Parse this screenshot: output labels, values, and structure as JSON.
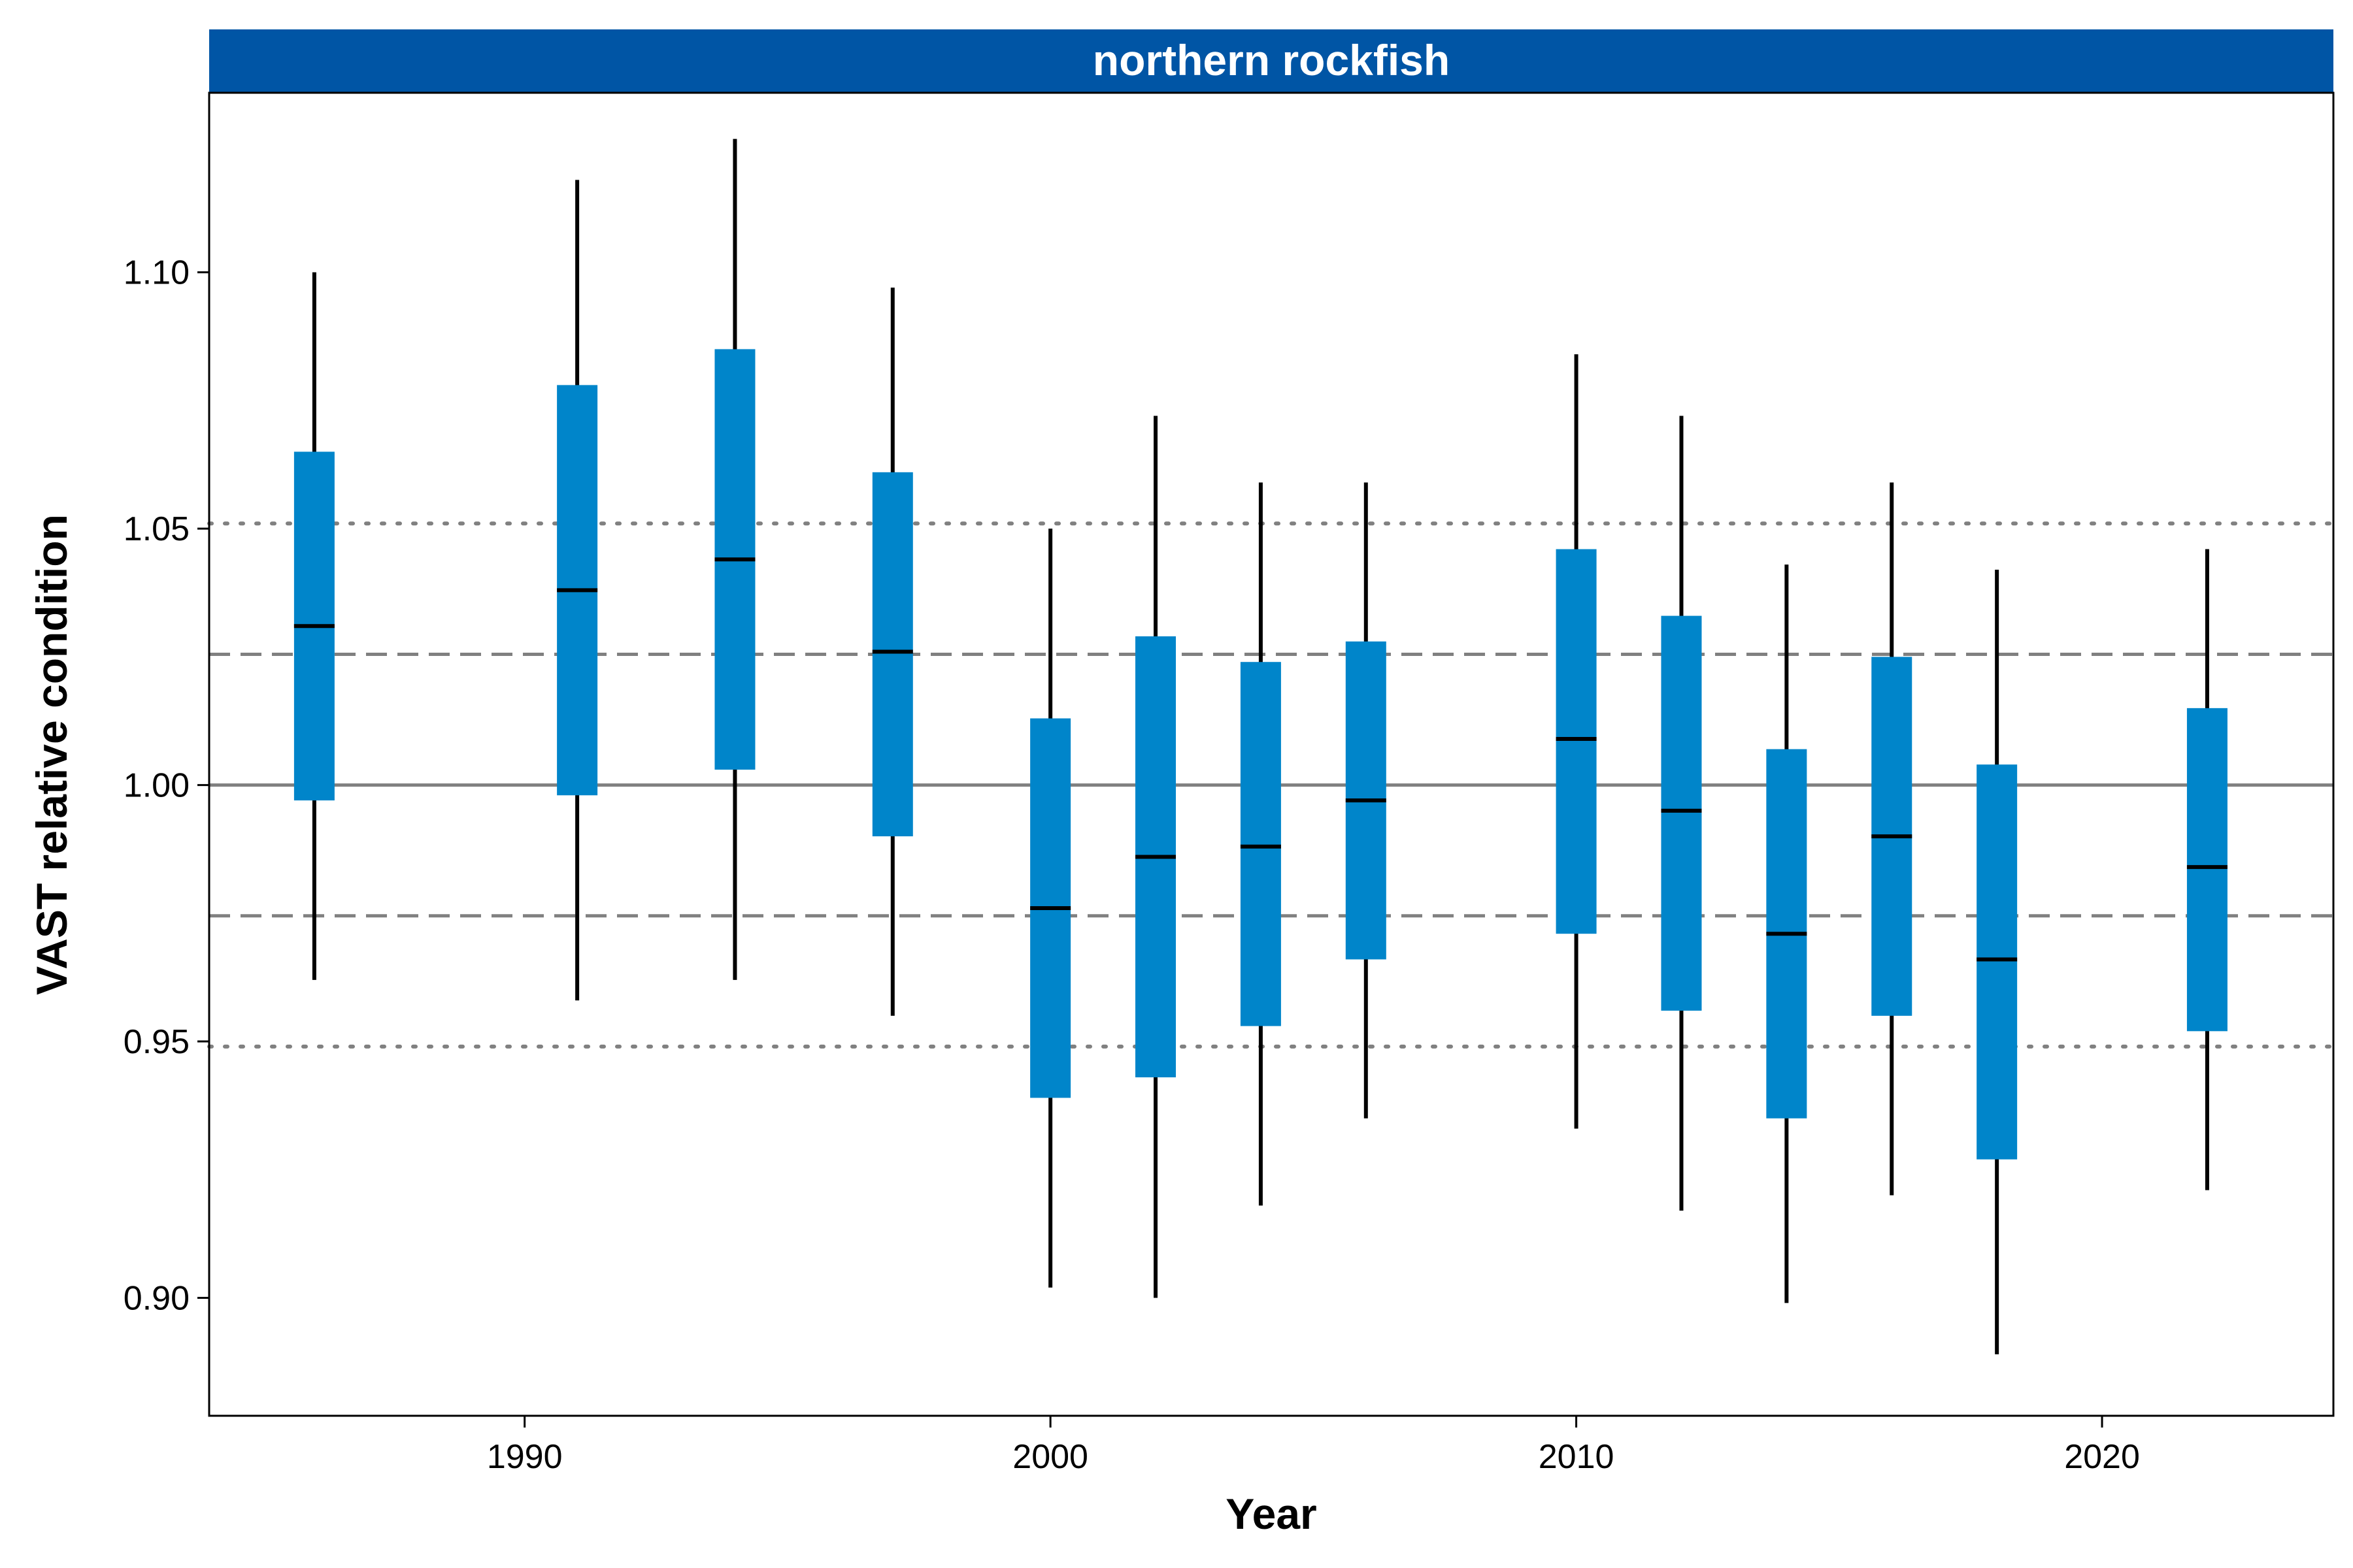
{
  "colors": {
    "strip_fill": "#0055A5",
    "box_fill": "#0085CA",
    "whisker": "#000000",
    "median": "#000000",
    "reference_lines": "#808080",
    "panel_border": "#000000"
  },
  "chart_data": {
    "type": "box",
    "panel_title": "northern rockfish",
    "xlabel": "Year",
    "ylabel": "VAST relative condition",
    "xlim": [
      1984,
      2024.4
    ],
    "ylim": [
      0.877,
      1.135
    ],
    "x_ticks": [
      1990,
      2000,
      2010,
      2020
    ],
    "y_ticks": [
      0.9,
      0.95,
      1.0,
      1.05,
      1.1
    ],
    "y_tick_labels": [
      "0.90",
      "0.95",
      "1.00",
      "1.05",
      "1.10"
    ],
    "grid": false,
    "reference_lines": [
      {
        "y": 1.0,
        "style": "solid"
      },
      {
        "y": 1.0255,
        "style": "dashed"
      },
      {
        "y": 0.9745,
        "style": "dashed"
      },
      {
        "y": 1.051,
        "style": "dotted"
      },
      {
        "y": 0.949,
        "style": "dotted"
      }
    ],
    "boxes": [
      {
        "year": 1986,
        "whisker_low": 0.962,
        "box_low": 0.997,
        "median": 1.031,
        "box_high": 1.065,
        "whisker_high": 1.1
      },
      {
        "year": 1991,
        "whisker_low": 0.958,
        "box_low": 0.998,
        "median": 1.038,
        "box_high": 1.078,
        "whisker_high": 1.118
      },
      {
        "year": 1994,
        "whisker_low": 0.962,
        "box_low": 1.003,
        "median": 1.044,
        "box_high": 1.085,
        "whisker_high": 1.126
      },
      {
        "year": 1997,
        "whisker_low": 0.955,
        "box_low": 0.99,
        "median": 1.026,
        "box_high": 1.061,
        "whisker_high": 1.097
      },
      {
        "year": 2000,
        "whisker_low": 0.902,
        "box_low": 0.939,
        "median": 0.976,
        "box_high": 1.013,
        "whisker_high": 1.05
      },
      {
        "year": 2002,
        "whisker_low": 0.9,
        "box_low": 0.943,
        "median": 0.986,
        "box_high": 1.029,
        "whisker_high": 1.072
      },
      {
        "year": 2004,
        "whisker_low": 0.918,
        "box_low": 0.953,
        "median": 0.988,
        "box_high": 1.024,
        "whisker_high": 1.059
      },
      {
        "year": 2006,
        "whisker_low": 0.935,
        "box_low": 0.966,
        "median": 0.997,
        "box_high": 1.028,
        "whisker_high": 1.059
      },
      {
        "year": 2010,
        "whisker_low": 0.933,
        "box_low": 0.971,
        "median": 1.009,
        "box_high": 1.046,
        "whisker_high": 1.084
      },
      {
        "year": 2012,
        "whisker_low": 0.917,
        "box_low": 0.956,
        "median": 0.995,
        "box_high": 1.033,
        "whisker_high": 1.072
      },
      {
        "year": 2014,
        "whisker_low": 0.899,
        "box_low": 0.935,
        "median": 0.971,
        "box_high": 1.007,
        "whisker_high": 1.043
      },
      {
        "year": 2016,
        "whisker_low": 0.92,
        "box_low": 0.955,
        "median": 0.99,
        "box_high": 1.025,
        "whisker_high": 1.059
      },
      {
        "year": 2018,
        "whisker_low": 0.889,
        "box_low": 0.927,
        "median": 0.966,
        "box_high": 1.004,
        "whisker_high": 1.042
      },
      {
        "year": 2022,
        "whisker_low": 0.921,
        "box_low": 0.952,
        "median": 0.984,
        "box_high": 1.015,
        "whisker_high": 1.046
      }
    ]
  }
}
